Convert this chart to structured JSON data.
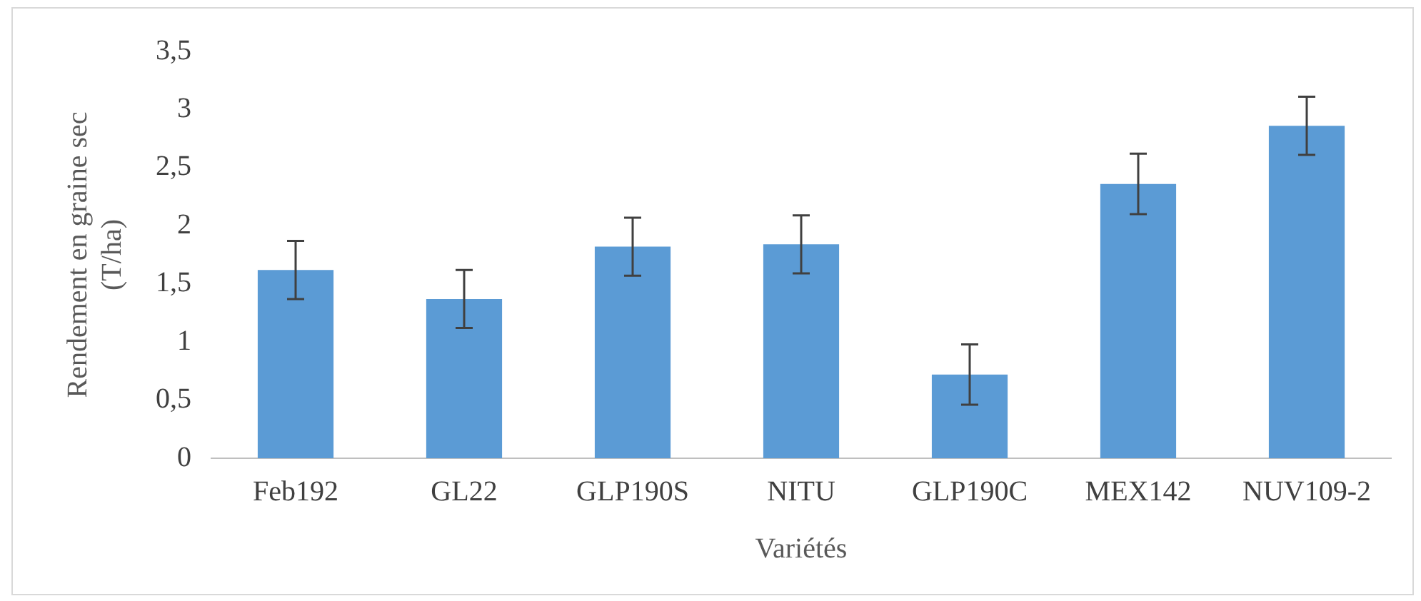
{
  "chart_data": {
    "type": "bar",
    "xlabel": "Variétés",
    "ylabel": "Rendement en graine sec (T/ha)",
    "categories": [
      "Feb192",
      "GL22",
      "GLP190S",
      "NITU",
      "GLP190C",
      "MEX142",
      "NUV109-2"
    ],
    "values": [
      1.62,
      1.37,
      1.82,
      1.84,
      0.72,
      2.36,
      2.86
    ],
    "errors": [
      0.25,
      0.25,
      0.25,
      0.25,
      0.26,
      0.26,
      0.25
    ],
    "color": "#5b9bd5",
    "ylim": [
      0,
      3.5
    ],
    "yticks": [
      0,
      {
        "value": 0.5,
        "label": "0,5"
      },
      1,
      {
        "value": 1.5,
        "label": "1,5"
      },
      2,
      {
        "value": 2.5,
        "label": "2,5"
      },
      3,
      {
        "value": 3.5,
        "label": "3,5"
      }
    ],
    "grid": false,
    "legend": false
  }
}
